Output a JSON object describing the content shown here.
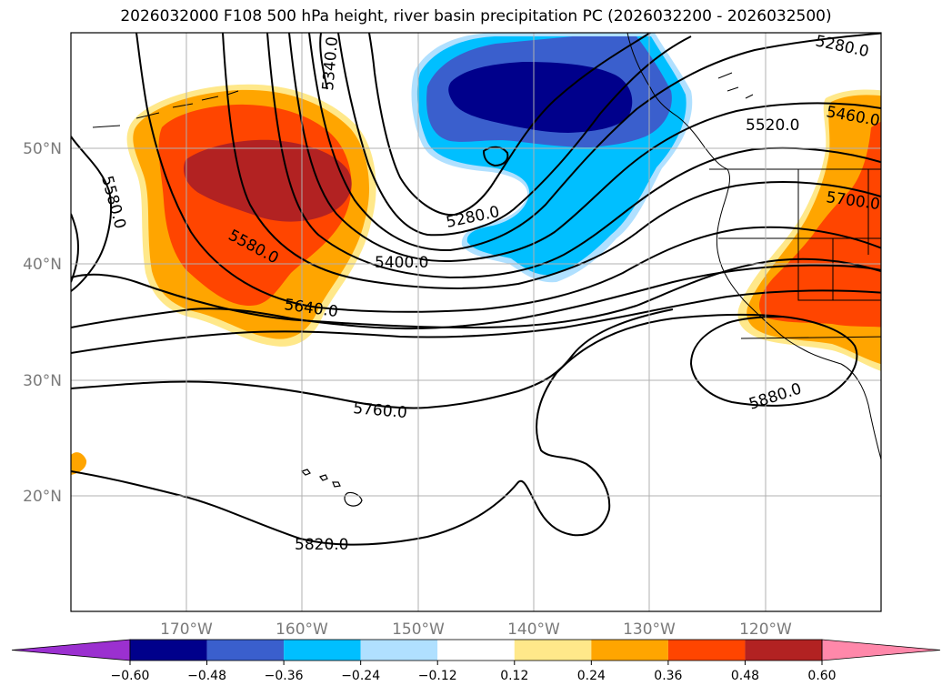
{
  "title": "2026032000 F108 500 hPa height, river basin precipitation PC (2026032200 - 2026032500)",
  "lon_ticks": [
    "170°W",
    "160°W",
    "150°W",
    "140°W",
    "130°W",
    "120°W"
  ],
  "lat_ticks": [
    "50°N",
    "40°N",
    "30°N",
    "20°N"
  ],
  "contour_labels": {
    "c5340": "5340.0",
    "c5580a": "5580.0",
    "c5280a": "5280.0",
    "c5280b": "5280.0",
    "c5520": "5520.0",
    "c5460": "5460.0",
    "c5700": "5700.0",
    "c5580b": "5580.0",
    "c5400": "5400.0",
    "c5640": "5640.0",
    "c5760": "5760.0",
    "c5880": "5880.0",
    "c5820": "5820.0"
  },
  "colorbar": {
    "ticks": [
      "−0.60",
      "−0.48",
      "−0.36",
      "−0.24",
      "−0.12",
      "0.12",
      "0.24",
      "0.36",
      "0.48",
      "0.60"
    ],
    "colors": [
      "#9b30d0",
      "#00008b",
      "#3a5fcd",
      "#00bfff",
      "#b0e0ff",
      "#ffffff",
      "#ffe88a",
      "#ffa500",
      "#ff4500",
      "#b22222",
      "#ff88aa"
    ]
  }
}
